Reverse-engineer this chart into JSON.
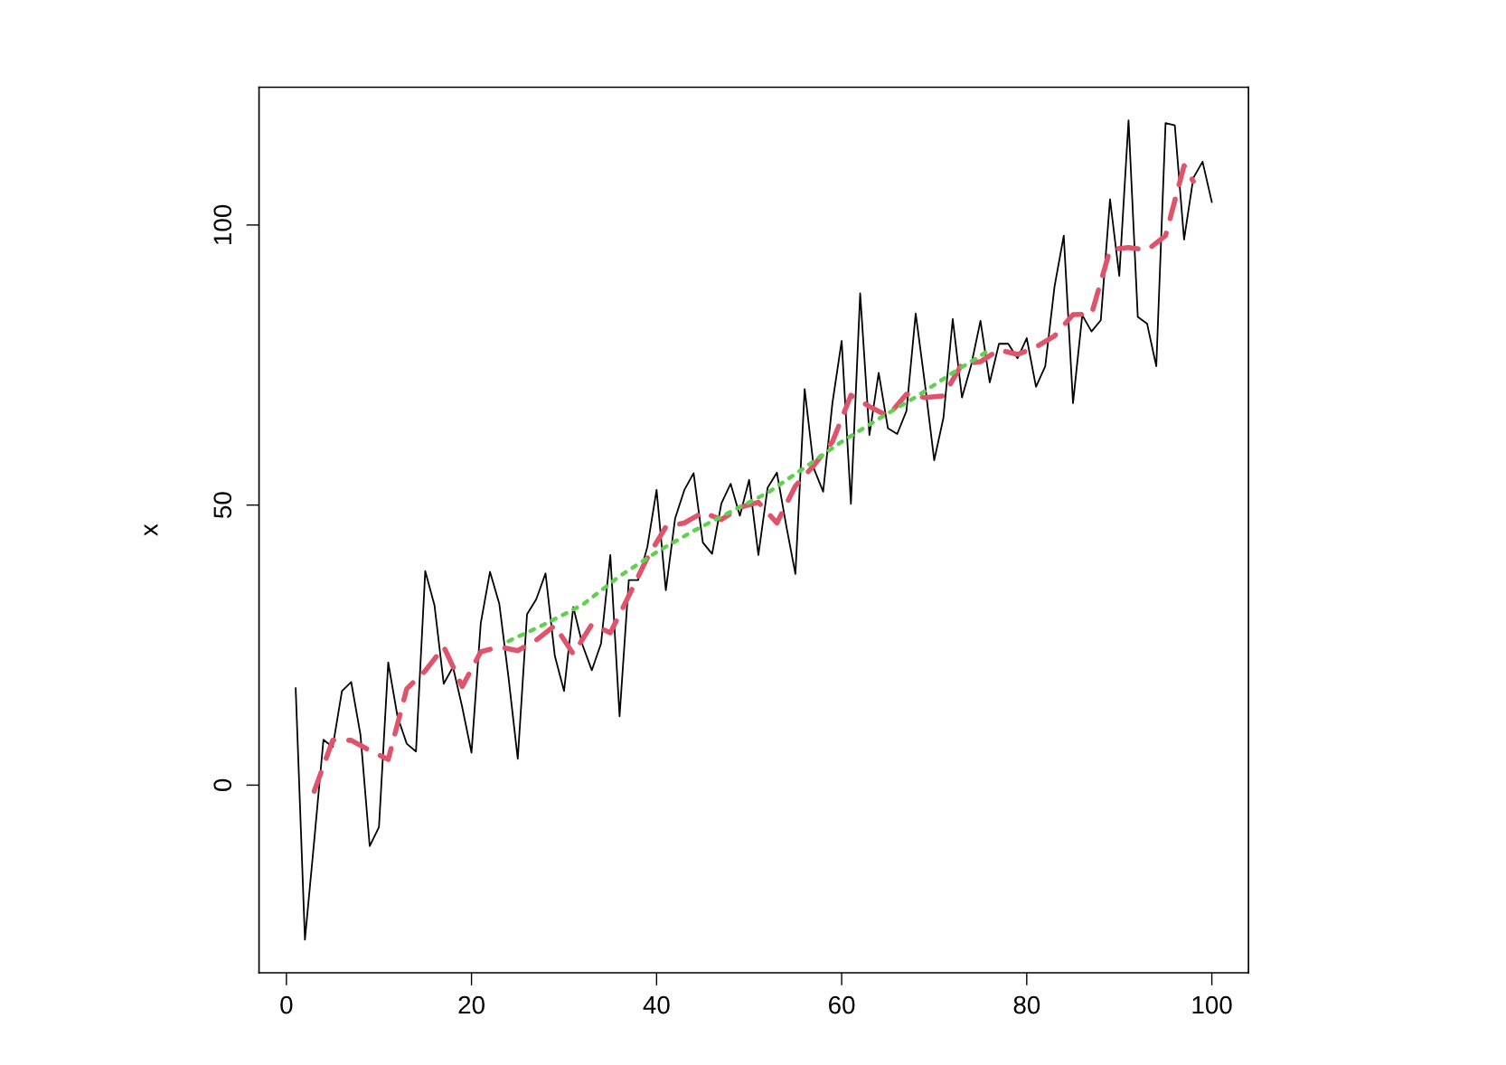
{
  "chart_data": {
    "type": "line",
    "ylabel": "x",
    "xlim": [
      -2.96,
      103.96
    ],
    "ylim": [
      -33.5,
      124.6
    ],
    "xticks": [
      0,
      20,
      40,
      60,
      80,
      100
    ],
    "yticks": [
      0,
      50,
      100
    ],
    "grid": false,
    "legend": false,
    "marker": "none",
    "series": [
      {
        "color": "#000000",
        "line_style": "solid",
        "x": [
          1,
          2,
          3,
          4,
          5,
          6,
          7,
          8,
          9,
          10,
          11,
          12,
          13,
          14,
          15,
          16,
          17,
          18,
          19,
          20,
          21,
          22,
          23,
          24,
          25,
          26,
          27,
          28,
          29,
          30,
          31,
          32,
          33,
          34,
          35,
          36,
          37,
          38,
          39,
          40,
          41,
          42,
          43,
          44,
          45,
          46,
          47,
          48,
          49,
          50,
          51,
          52,
          53,
          54,
          55,
          56,
          57,
          58,
          59,
          60,
          61,
          62,
          63,
          64,
          65,
          66,
          67,
          68,
          69,
          70,
          71,
          72,
          73,
          74,
          75,
          76,
          77,
          78,
          79,
          80,
          81,
          82,
          83,
          84,
          85,
          86,
          87,
          88,
          89,
          90,
          91,
          92,
          93,
          94,
          95,
          96,
          97,
          98,
          99,
          100
        ],
        "values": [
          17.3,
          -27.6,
          -10,
          8.1,
          6.8,
          16.8,
          18.4,
          9.0,
          -10.9,
          -7.5,
          21.9,
          12.3,
          7.4,
          6.0,
          38.2,
          32.1,
          18.1,
          21.1,
          13.9,
          5.8,
          28.9,
          38.1,
          32.4,
          19.2,
          4.7,
          30.5,
          33.2,
          37.8,
          23.1,
          16.8,
          31.8,
          25,
          20.5,
          25.3,
          41.1,
          12.3,
          36.6,
          36.6,
          42.5,
          52.7,
          34.8,
          47.6,
          52.7,
          55.7,
          43.3,
          41.3,
          50.3,
          53.8,
          48.1,
          54.5,
          41.1,
          53.1,
          55.8,
          46.4,
          37.7,
          70.7,
          56.5,
          52.4,
          68.2,
          79.3,
          50.2,
          87.8,
          62.5,
          73.6,
          63.7,
          62.7,
          66.8,
          84.2,
          71.6,
          58,
          65.6,
          83.2,
          69.2,
          75,
          82.9,
          71.9,
          78.8,
          78.8,
          76.2,
          79.8,
          71.1,
          74.8,
          89,
          98.1,
          68.2,
          83.9,
          81,
          83,
          104.6,
          90.9,
          118.7,
          83.6,
          82.4,
          74.8,
          118.2,
          117.8,
          97.4,
          108.4,
          111.3,
          104.1
        ]
      },
      {
        "color": "#df536b",
        "line_style": "dashed",
        "x": [
          3,
          5,
          7,
          9,
          11,
          13,
          15,
          17,
          19,
          21,
          23,
          25,
          27,
          29,
          31,
          33,
          35,
          37,
          39,
          41,
          43,
          45,
          47,
          49,
          51,
          53,
          55,
          57,
          59,
          61,
          63,
          65,
          67,
          69,
          71,
          73,
          75,
          77,
          79,
          81,
          83,
          85,
          87,
          89,
          91,
          93,
          95,
          97,
          98
        ],
        "values": [
          -1.1,
          8.0,
          8.0,
          6.2,
          4.6,
          17.2,
          20.4,
          24.7,
          17.6,
          23.8,
          24.7,
          24,
          25.9,
          28.5,
          23.4,
          28.7,
          27.2,
          33.8,
          40.6,
          46.1,
          46.8,
          48.7,
          47.4,
          49.6,
          50.5,
          46.8,
          53.4,
          57.1,
          61.3,
          69.6,
          67.6,
          65.9,
          69.8,
          69.2,
          69.5,
          75.2,
          75.6,
          77.7,
          76.9,
          78.2,
          80.2,
          84.0,
          84.1,
          95.6,
          96.0,
          95.5,
          98.1,
          110.6,
          107.8
        ]
      },
      {
        "color": "#61d04f",
        "line_style": "dotted",
        "x": [
          24,
          28,
          32,
          36,
          40,
          44,
          48,
          52,
          56,
          60,
          64,
          68,
          72,
          76
        ],
        "values": [
          25.7,
          28.8,
          32.2,
          37.3,
          41.6,
          45.4,
          48.8,
          52.2,
          56.7,
          61.3,
          65.4,
          69.3,
          73.6,
          77.7
        ]
      }
    ]
  }
}
